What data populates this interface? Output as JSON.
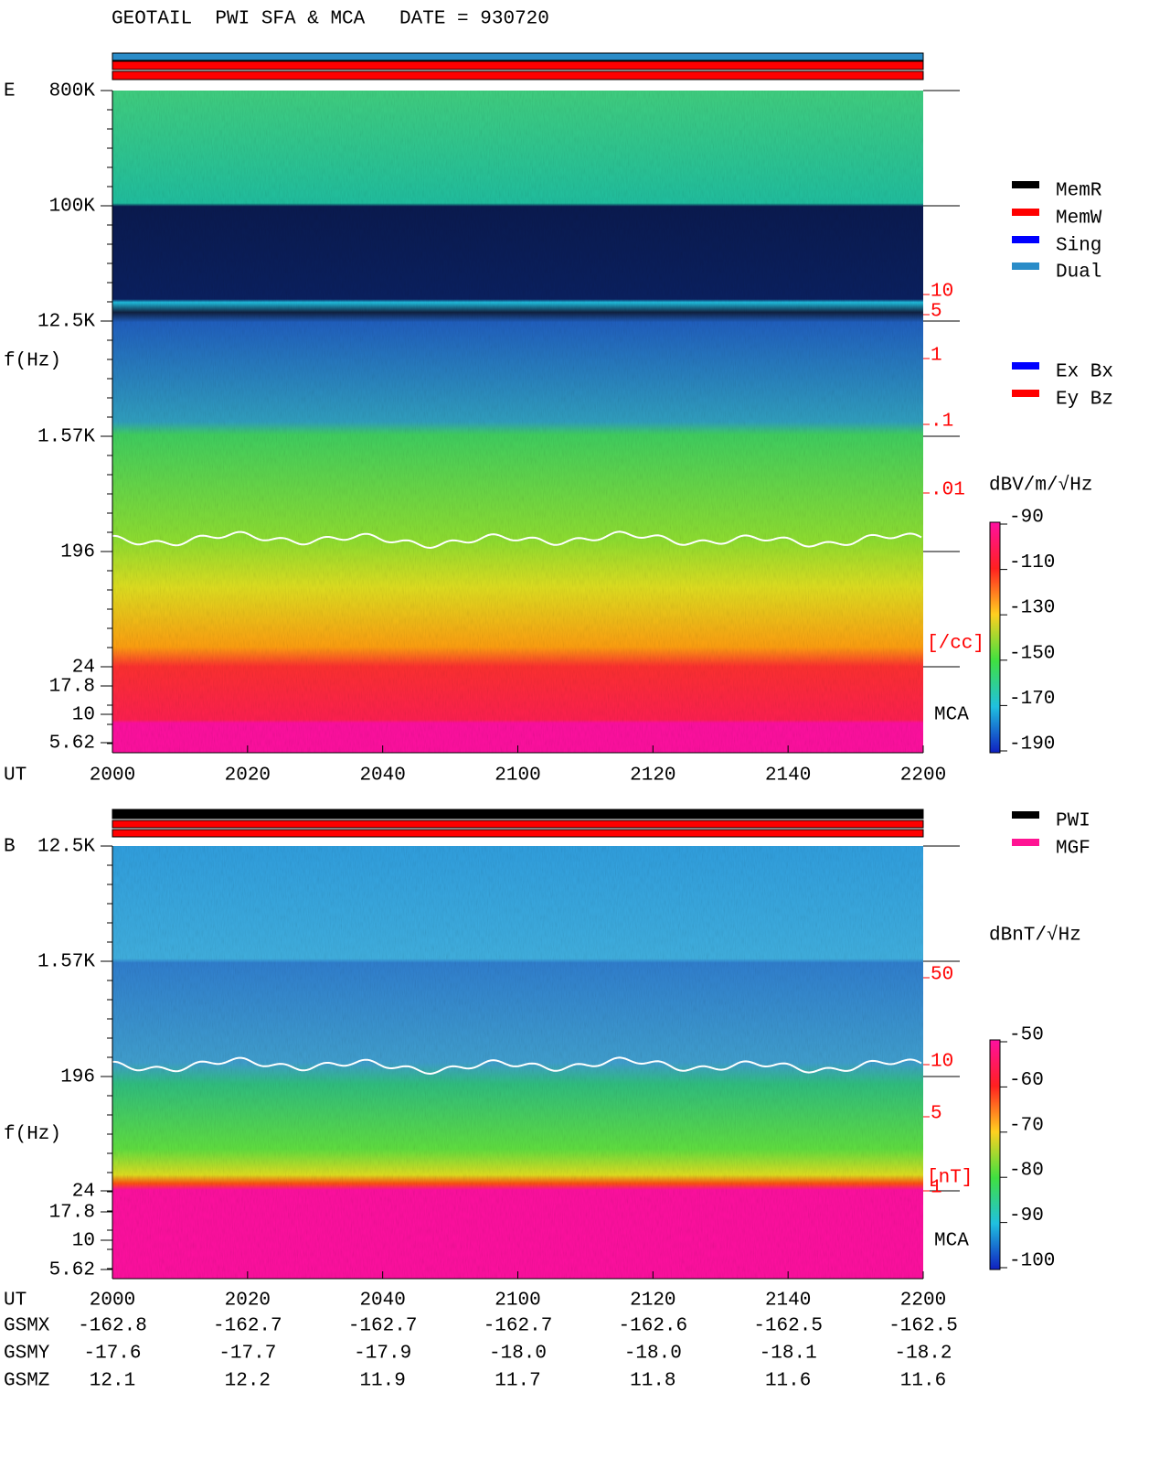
{
  "header": {
    "title": "GEOTAIL  PWI SFA & MCA   DATE = 930720"
  },
  "panels": [
    {
      "label": "E",
      "y_axis_label": "f(Hz)",
      "y_ticks": [
        "800K",
        "100K",
        "12.5K",
        "1.57K",
        "196",
        "24",
        "17.8",
        "10",
        "5.62"
      ],
      "x_axis_label": "UT",
      "x_ticks": [
        "2000",
        "2020",
        "2040",
        "2100",
        "2120",
        "2140",
        "2200"
      ],
      "right_scale": [
        "10",
        "5",
        "1",
        ".1",
        ".01"
      ],
      "right_unit": "[/cc]",
      "mca": "MCA",
      "legend_groups": [
        [
          {
            "label": "MemR",
            "color": "#000000"
          },
          {
            "label": "MemW",
            "color": "#ff0000"
          },
          {
            "label": "Sing",
            "color": "#0000ff"
          },
          {
            "label": "Dual",
            "color": "#2a8cc8"
          }
        ],
        [
          {
            "label": "Ex Bx",
            "color": "#0000ff"
          },
          {
            "label": "Ey Bz",
            "color": "#ff0000"
          }
        ]
      ],
      "colorbar_unit": "dBV/m/√Hz",
      "colorbar_ticks": [
        "-90",
        "-110",
        "-130",
        "-150",
        "-170",
        "-190"
      ]
    },
    {
      "label": "B",
      "y_axis_label": "f(Hz)",
      "y_ticks": [
        "12.5K",
        "1.57K",
        "196",
        "24",
        "17.8",
        "10",
        "5.62"
      ],
      "x_axis_label": "UT",
      "x_ticks": [
        "2000",
        "2020",
        "2040",
        "2100",
        "2120",
        "2140",
        "2200"
      ],
      "right_scale": [
        "50",
        "10",
        "5",
        "1"
      ],
      "right_unit": "[nT]",
      "mca": "MCA",
      "legend_groups": [
        [
          {
            "label": "PWI",
            "color": "#000000"
          },
          {
            "label": "MGF",
            "color": "#ff1493"
          }
        ]
      ],
      "colorbar_unit": "dBnT/√Hz",
      "colorbar_ticks": [
        "-50",
        "-60",
        "-70",
        "-80",
        "-90",
        "-100"
      ]
    }
  ],
  "orbit": {
    "rows": [
      {
        "label": "GSMX",
        "values": [
          "-162.8",
          "-162.7",
          "-162.7",
          "-162.7",
          "-162.6",
          "-162.5",
          "-162.5"
        ]
      },
      {
        "label": "GSMY",
        "values": [
          "-17.6",
          "-17.7",
          "-17.9",
          "-18.0",
          "-18.0",
          "-18.1",
          "-18.2"
        ]
      },
      {
        "label": "GSMZ",
        "values": [
          "12.1",
          "12.2",
          "11.9",
          "11.7",
          "11.8",
          "11.6",
          "11.6"
        ]
      }
    ]
  }
}
